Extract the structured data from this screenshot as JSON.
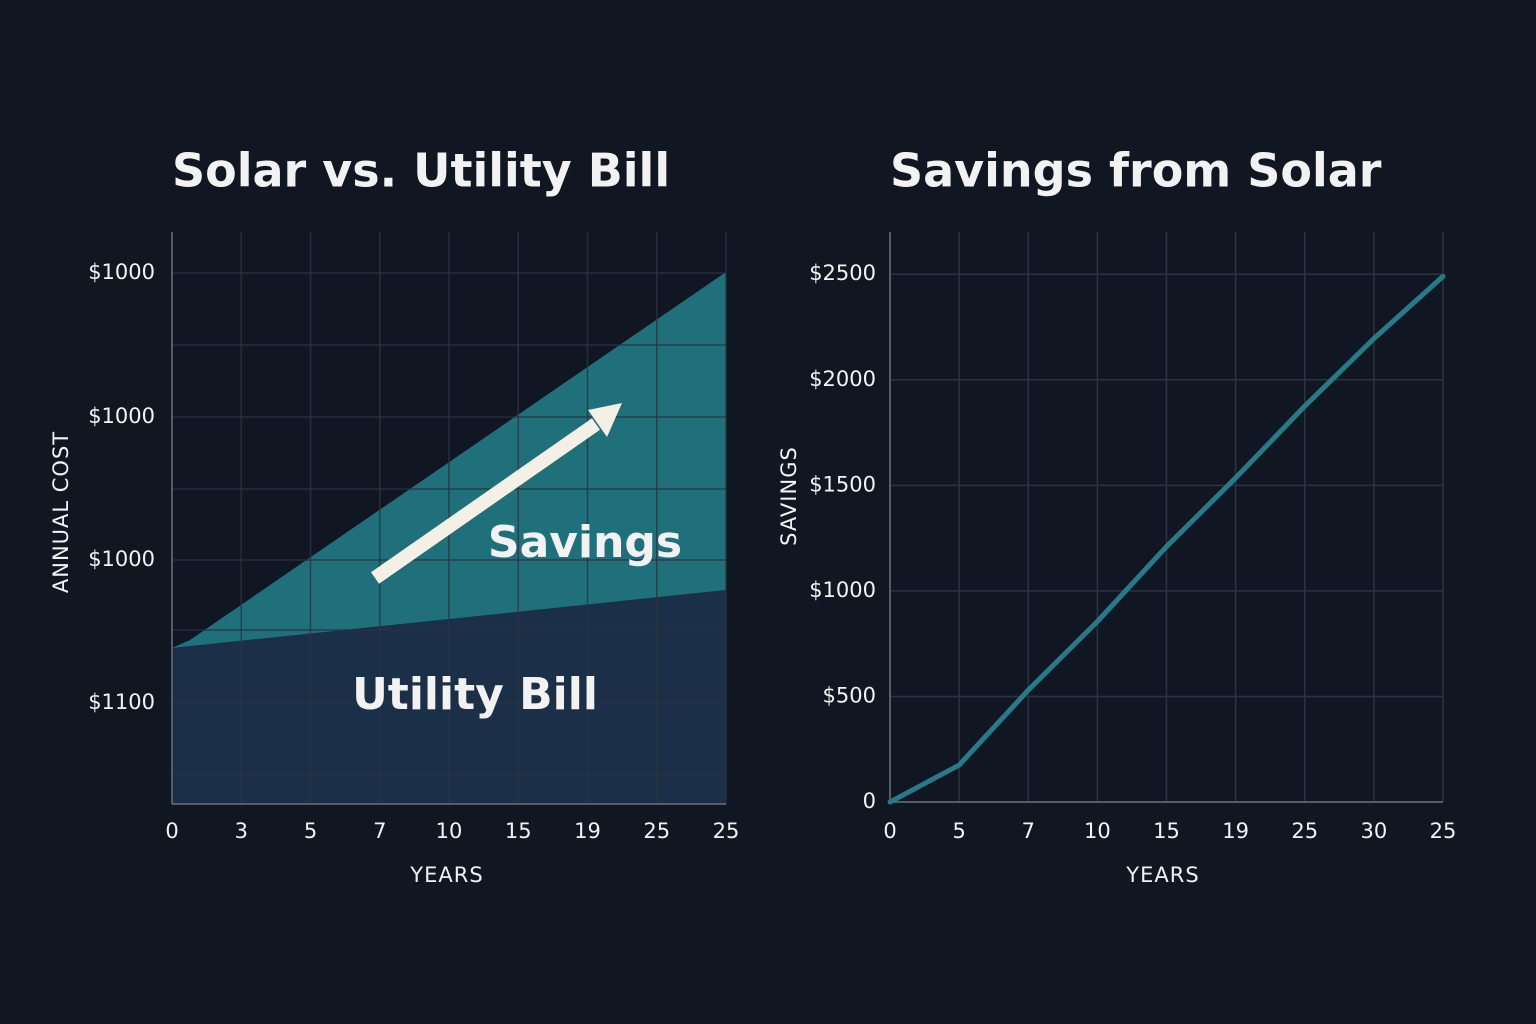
{
  "left_panel": {
    "title": "Solar vs. Utility Bill",
    "y_axis_label": "ANNUAL COST",
    "x_axis_label": "YEARS",
    "x_labels": [
      "0",
      "3",
      "5",
      "7",
      "10",
      "15",
      "19",
      "25",
      "25"
    ],
    "y_labels": [
      "$1000",
      "$1000",
      "$1000",
      "$1100"
    ],
    "annotations": [
      "Savings",
      "Utility Bill"
    ]
  },
  "chart_data": {
    "type": "line",
    "title": "Savings from Solar",
    "y_axis_label": "SAVINGS",
    "x_axis_label": "YEARS",
    "categories": [
      "0",
      "5",
      "7",
      "10",
      "15",
      "19",
      "25",
      "30",
      "25"
    ],
    "series": [
      {
        "name": "Savings",
        "color": "#267a8a",
        "values": [
          0,
          175,
          530,
          855,
          1210,
          1535,
          1875,
          2195,
          2490
        ]
      }
    ],
    "ylim": [
      0,
      2700
    ],
    "yticks": [
      0,
      {
        "value": 500,
        "label": "$500"
      },
      {
        "value": 1000,
        "label": "$1000"
      },
      {
        "value": 1500,
        "label": "$1500"
      },
      {
        "value": 2000,
        "label": "$2000"
      },
      {
        "value": 2500,
        "label": "$2500"
      }
    ],
    "grid": true
  }
}
